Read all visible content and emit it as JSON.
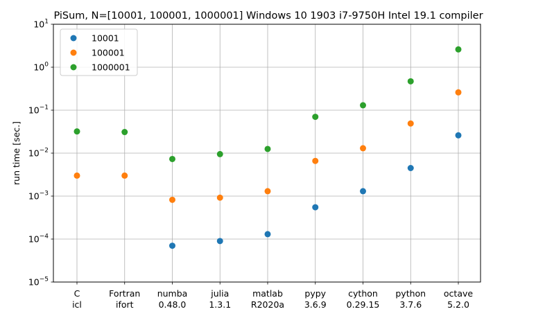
{
  "chart_data": {
    "type": "scatter",
    "title": "PiSum, N=[10001, 100001, 1000001]   Windows 10 1903  i7-9750H Intel 19.1 compiler",
    "xlabel": "",
    "ylabel": "run time [sec.]",
    "yscale": "log",
    "ylim": [
      1e-05,
      10
    ],
    "yticks": [
      {
        "value": 1e-05,
        "base": "10",
        "exp": "−5"
      },
      {
        "value": 0.0001,
        "base": "10",
        "exp": "−4"
      },
      {
        "value": 0.001,
        "base": "10",
        "exp": "−3"
      },
      {
        "value": 0.01,
        "base": "10",
        "exp": "−2"
      },
      {
        "value": 0.1,
        "base": "10",
        "exp": "−1"
      },
      {
        "value": 1,
        "base": "10",
        "exp": "0"
      },
      {
        "value": 10,
        "base": "10",
        "exp": "1"
      }
    ],
    "categories": [
      {
        "name": "C",
        "version": "icl"
      },
      {
        "name": "Fortran",
        "version": "ifort"
      },
      {
        "name": "numba",
        "version": "0.48.0"
      },
      {
        "name": "julia",
        "version": "1.3.1"
      },
      {
        "name": "matlab",
        "version": "R2020a"
      },
      {
        "name": "pypy",
        "version": "3.6.9"
      },
      {
        "name": "cython",
        "version": "0.29.15"
      },
      {
        "name": "python",
        "version": "3.7.6"
      },
      {
        "name": "octave",
        "version": "5.2.0"
      }
    ],
    "grid": true,
    "legend": "top-left",
    "series": [
      {
        "name": "10001",
        "color": "#1f77b4",
        "values": [
          null,
          null,
          7e-05,
          9e-05,
          0.00013,
          0.00055,
          0.0013,
          0.0045,
          0.026
        ]
      },
      {
        "name": "100001",
        "color": "#ff7f0e",
        "values": [
          0.003,
          0.003,
          0.00082,
          0.00092,
          0.0013,
          0.0066,
          0.013,
          0.049,
          0.26
        ]
      },
      {
        "name": "1000001",
        "color": "#2ca02c",
        "values": [
          0.032,
          0.031,
          0.0073,
          0.0095,
          0.0125,
          0.07,
          0.13,
          0.47,
          2.6
        ]
      }
    ]
  }
}
